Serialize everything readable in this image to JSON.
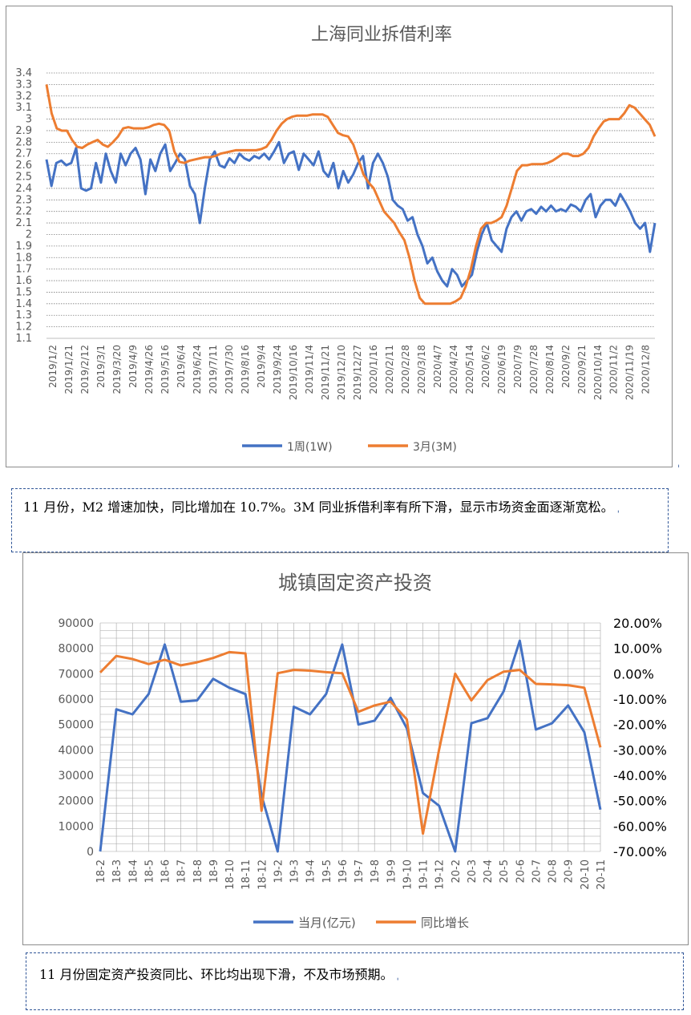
{
  "chart_data": [
    {
      "type": "line",
      "title": "上海同业拆借利率",
      "ylim": [
        1.1,
        3.4
      ],
      "y_ticks": [
        "1.1",
        "1.2",
        "1.3",
        "1.4",
        "1.5",
        "1.6",
        "1.7",
        "1.8",
        "1.9",
        "2",
        "2.1",
        "2.2",
        "2.3",
        "2.4",
        "2.5",
        "2.6",
        "2.7",
        "2.8",
        "2.9",
        "3",
        "3.1",
        "3.2",
        "3.3",
        "3.4"
      ],
      "x_ticks": [
        "2019/1/2",
        "2019/1/21",
        "2019/2/12",
        "2019/3/1",
        "2019/3/20",
        "2019/4/9",
        "2019/4/26",
        "2019/5/16",
        "2019/6/4",
        "2019/6/24",
        "2019/7/11",
        "2019/7/30",
        "2019/8/16",
        "2019/9/4",
        "2019/9/24",
        "2019/10/16",
        "2019/11/4",
        "2019/11/21",
        "2019/12/10",
        "2019/12/27",
        "2020/1/16",
        "2020/2/11",
        "2020/2/28",
        "2020/3/18",
        "2020/4/7",
        "2020/4/24",
        "2020/5/14",
        "2020/6/2",
        "2020/6/19",
        "2020/7/9",
        "2020/7/28",
        "2020/8/14",
        "2020/9/2",
        "2020/9/21",
        "2020/10/14",
        "2020/11/2",
        "2020/11/19",
        "2020/12/8"
      ],
      "grid": true,
      "legend_position": "bottom",
      "series": [
        {
          "name": "1周(1W)",
          "color": "#4472c4",
          "values": [
            2.65,
            2.42,
            2.62,
            2.64,
            2.6,
            2.62,
            2.75,
            2.4,
            2.38,
            2.4,
            2.62,
            2.45,
            2.7,
            2.55,
            2.45,
            2.7,
            2.6,
            2.7,
            2.75,
            2.65,
            2.35,
            2.65,
            2.55,
            2.7,
            2.78,
            2.55,
            2.62,
            2.7,
            2.65,
            2.42,
            2.35,
            2.1,
            2.4,
            2.65,
            2.72,
            2.6,
            2.58,
            2.66,
            2.62,
            2.7,
            2.66,
            2.64,
            2.68,
            2.66,
            2.7,
            2.65,
            2.72,
            2.8,
            2.62,
            2.7,
            2.72,
            2.56,
            2.7,
            2.65,
            2.6,
            2.72,
            2.55,
            2.5,
            2.62,
            2.4,
            2.55,
            2.45,
            2.52,
            2.62,
            2.68,
            2.4,
            2.62,
            2.7,
            2.62,
            2.5,
            2.3,
            2.25,
            2.22,
            2.12,
            2.15,
            2.0,
            1.9,
            1.75,
            1.8,
            1.68,
            1.6,
            1.55,
            1.7,
            1.65,
            1.55,
            1.6,
            1.65,
            1.85,
            2.0,
            2.1,
            1.95,
            1.9,
            1.85,
            2.05,
            2.15,
            2.2,
            2.12,
            2.2,
            2.22,
            2.18,
            2.24,
            2.2,
            2.25,
            2.2,
            2.22,
            2.2,
            2.26,
            2.24,
            2.2,
            2.3,
            2.35,
            2.15,
            2.25,
            2.3,
            2.3,
            2.25,
            2.35,
            2.28,
            2.2,
            2.1,
            2.05,
            2.1,
            1.85,
            2.1
          ]
        },
        {
          "name": "3月(3M)",
          "color": "#ed7d31",
          "values": [
            3.3,
            3.05,
            2.92,
            2.9,
            2.9,
            2.82,
            2.76,
            2.75,
            2.78,
            2.8,
            2.82,
            2.78,
            2.76,
            2.8,
            2.85,
            2.92,
            2.93,
            2.92,
            2.92,
            2.92,
            2.93,
            2.95,
            2.96,
            2.95,
            2.9,
            2.72,
            2.63,
            2.62,
            2.64,
            2.65,
            2.66,
            2.67,
            2.67,
            2.68,
            2.7,
            2.71,
            2.72,
            2.73,
            2.73,
            2.73,
            2.73,
            2.73,
            2.74,
            2.76,
            2.82,
            2.9,
            2.96,
            3.0,
            3.02,
            3.03,
            3.03,
            3.03,
            3.04,
            3.04,
            3.04,
            3.02,
            2.95,
            2.88,
            2.86,
            2.85,
            2.78,
            2.65,
            2.52,
            2.45,
            2.4,
            2.3,
            2.2,
            2.15,
            2.1,
            2.02,
            1.95,
            1.8,
            1.6,
            1.45,
            1.4,
            1.4,
            1.4,
            1.4,
            1.4,
            1.4,
            1.42,
            1.45,
            1.55,
            1.7,
            1.9,
            2.05,
            2.1,
            2.1,
            2.12,
            2.15,
            2.25,
            2.4,
            2.55,
            2.6,
            2.6,
            2.61,
            2.61,
            2.61,
            2.62,
            2.64,
            2.67,
            2.7,
            2.7,
            2.68,
            2.68,
            2.7,
            2.75,
            2.85,
            2.92,
            2.98,
            3.0,
            3.0,
            3.0,
            3.05,
            3.12,
            3.1,
            3.05,
            3.0,
            2.95,
            2.85
          ]
        }
      ]
    },
    {
      "type": "line",
      "title": "城镇固定资产投资",
      "categories": [
        "18-2",
        "18-3",
        "18-4",
        "18-5",
        "18-6",
        "18-7",
        "18-8",
        "18-9",
        "18-10",
        "18-11",
        "18-12",
        "19-2",
        "19-3",
        "19-4",
        "19-5",
        "19-6",
        "19-7",
        "19-8",
        "19-9",
        "19-10",
        "19-11",
        "19-12",
        "20-2",
        "20-3",
        "20-4",
        "20-5",
        "20-6",
        "20-7",
        "20-8",
        "20-9",
        "20-10",
        "20-11"
      ],
      "y_ticks": [
        "0",
        "10000",
        "20000",
        "30000",
        "40000",
        "50000",
        "60000",
        "70000",
        "80000",
        "90000"
      ],
      "ylim": [
        0,
        90000
      ],
      "y2_ticks": [
        "-70.00%",
        "-60.00%",
        "-50.00%",
        "-40.00%",
        "-30.00%",
        "-20.00%",
        "-10.00%",
        "0.00%",
        "10.00%",
        "20.00%"
      ],
      "y2lim": [
        -70,
        20
      ],
      "grid": true,
      "legend_position": "bottom",
      "series": [
        {
          "name": "当月(亿元)",
          "color": "#4472c4",
          "axis": "left",
          "values": [
            0,
            56000,
            54000,
            62000,
            81500,
            59000,
            59500,
            68000,
            64500,
            62000,
            22000,
            0,
            57000,
            54000,
            62000,
            81500,
            50000,
            51500,
            60500,
            48500,
            23000,
            18000,
            0,
            50500,
            52500,
            63000,
            83000,
            48000,
            50500,
            57500,
            47000,
            16500
          ]
        },
        {
          "name": "同比增长",
          "color": "#ed7d31",
          "axis": "right",
          "values": [
            0.5,
            7.0,
            5.8,
            3.8,
            5.5,
            3.3,
            4.5,
            6.2,
            8.5,
            8.0,
            -54.0,
            0.2,
            1.5,
            1.2,
            0.6,
            0.2,
            -15.0,
            -12.5,
            -11.0,
            -18.0,
            -63.0,
            -30.0,
            0.0,
            -10.5,
            -2.5,
            0.8,
            1.5,
            -4.0,
            -4.2,
            -4.5,
            -5.5,
            -29.0
          ]
        }
      ]
    }
  ],
  "notes": {
    "note1": "11 月份，M2 增速加快，同比增加在 10.7%。3M 同业拆借利率有所下滑，显示市场资金面逐渐宽松。",
    "note2": "11 月份固定资产投资同比、环比均出现下滑，不及市场预期。"
  },
  "marks": {
    "anchor": "ˌ"
  }
}
